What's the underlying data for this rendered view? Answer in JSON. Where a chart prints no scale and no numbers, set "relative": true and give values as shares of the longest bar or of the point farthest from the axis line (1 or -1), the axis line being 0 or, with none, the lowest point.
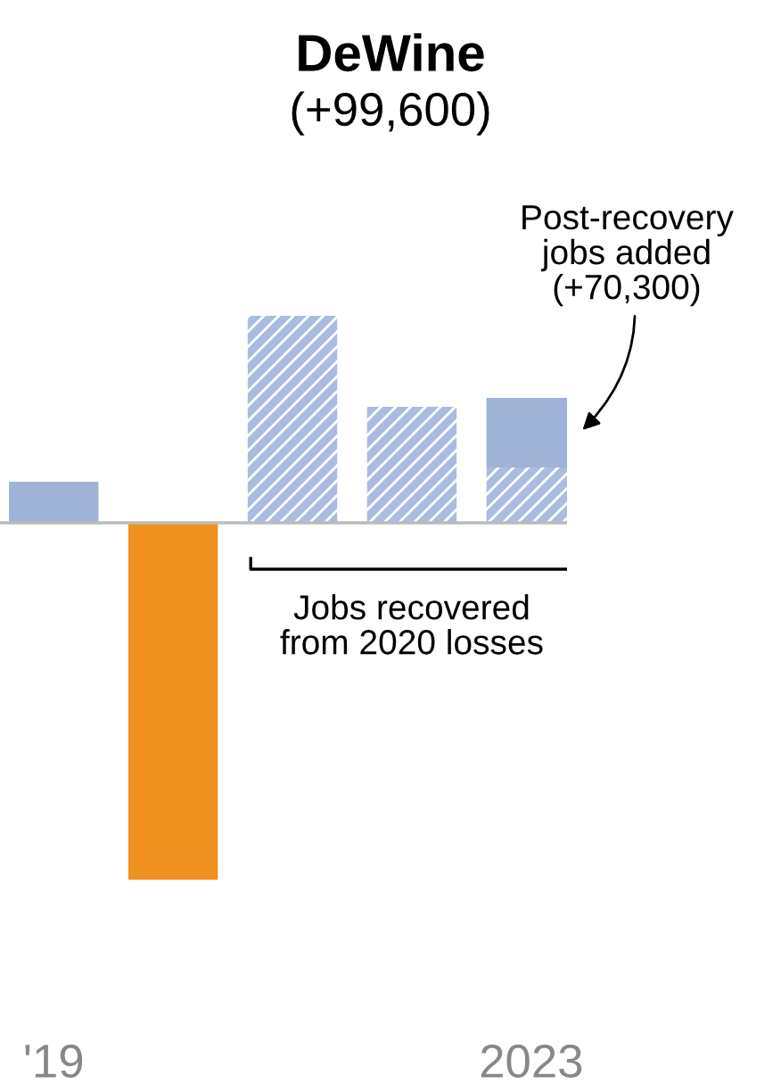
{
  "chart_data": {
    "type": "bar",
    "title": "DeWine",
    "subtitle": "(+99,600)",
    "categories": [
      "'19",
      null,
      null,
      null,
      "2023"
    ],
    "relative": true,
    "stacked": true,
    "series": [
      {
        "color": "#a9bde0",
        "values": [
          null,
          null,
          0.58,
          0.325,
          0.155
        ]
      },
      {
        "colors": [
          "#9fb3d6",
          "#f0901e",
          null,
          null,
          "#9fb3d6"
        ],
        "values": [
          0.115,
          -1,
          null,
          null,
          0.195
        ]
      }
    ],
    "annotations": [
      {
        "text": "Post-recovery\njobs added\n(+70,300)",
        "x": "2023",
        "y": 0.35
      },
      "Jobs recovered\nfrom 2020 losses"
    ]
  }
}
